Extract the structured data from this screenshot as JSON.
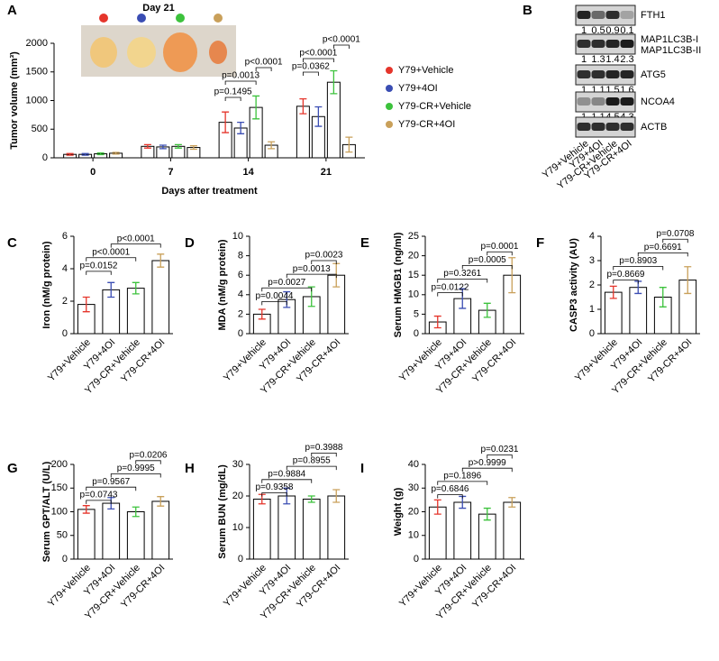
{
  "blot": {
    "panel": "B",
    "lanes": [
      "Y79+Vehicle",
      "Y79+4OI",
      "Y79-CR+Vehicle",
      "Y79-CR+4OI"
    ],
    "rows": [
      {
        "labels": [
          "FTH1"
        ],
        "values": [
          1,
          0.5,
          0.9,
          0.1
        ]
      },
      {
        "labels": [
          "MAP1LC3B-I",
          "MAP1LC3B-II"
        ],
        "values": [
          1,
          1.3,
          1.4,
          2.3
        ]
      },
      {
        "labels": [
          "ATG5"
        ],
        "values": [
          1,
          1.1,
          1.5,
          1.6
        ]
      },
      {
        "labels": [
          "NCOA4"
        ],
        "values": [
          1,
          1.1,
          4.5,
          4.3
        ]
      },
      {
        "labels": [
          "ACTB"
        ],
        "values": []
      }
    ]
  },
  "chart_data": [
    {
      "panel": "A",
      "type": "bar",
      "inset_label": "Day 21",
      "ylabel": "Tumor volume (mm³)",
      "xlabel": "Days after treatment",
      "categories": [
        "0",
        "7",
        "14",
        "21"
      ],
      "series": [
        {
          "name": "Y79+Vehicle",
          "color": "#e5352b",
          "values": [
            60,
            200,
            620,
            900
          ],
          "errors": [
            15,
            30,
            180,
            130
          ]
        },
        {
          "name": "Y79+4OI",
          "color": "#3a4db3",
          "values": [
            60,
            190,
            520,
            720
          ],
          "errors": [
            15,
            30,
            100,
            170
          ]
        },
        {
          "name": "Y79-CR+Vehicle",
          "color": "#3cc23c",
          "values": [
            70,
            200,
            880,
            1320
          ],
          "errors": [
            15,
            30,
            200,
            200
          ]
        },
        {
          "name": "Y79-CR+4OI",
          "color": "#c9a05a",
          "values": [
            80,
            180,
            220,
            230
          ],
          "errors": [
            15,
            30,
            60,
            130
          ]
        }
      ],
      "ylim": [
        0,
        2000
      ],
      "yticks": [
        0,
        500,
        1000,
        1500,
        2000
      ],
      "annotations": [
        "p=0.1495",
        "p=0.0013",
        "p<0.0001",
        "p=0.0362",
        "p<0.0001",
        "p<0.0001"
      ]
    },
    {
      "panel": "C",
      "type": "bar",
      "ylabel": "Iron (nM/g protein)",
      "categories": [
        "Y79+Vehicle",
        "Y79+4OI",
        "Y79-CR+Vehicle",
        "Y79-CR+4OI"
      ],
      "values": [
        1.8,
        2.7,
        2.8,
        4.5
      ],
      "errors": [
        0.45,
        0.45,
        0.35,
        0.4
      ],
      "colors": [
        "#e5352b",
        "#3a4db3",
        "#3cc23c",
        "#c9a05a"
      ],
      "ylim": [
        0,
        6
      ],
      "yticks": [
        0,
        2,
        4,
        6
      ],
      "annotations": [
        "p=0.0152",
        "p<0.0001",
        "p<0.0001"
      ]
    },
    {
      "panel": "D",
      "type": "bar",
      "ylabel": "MDA (nM/g protein)",
      "categories": [
        "Y79+Vehicle",
        "Y79+4OI",
        "Y79-CR+Vehicle",
        "Y79-CR+4OI"
      ],
      "values": [
        2.0,
        3.5,
        3.8,
        6.0
      ],
      "errors": [
        0.5,
        0.8,
        1.0,
        1.2
      ],
      "colors": [
        "#e5352b",
        "#3a4db3",
        "#3cc23c",
        "#c9a05a"
      ],
      "ylim": [
        0,
        10
      ],
      "yticks": [
        0,
        2,
        4,
        6,
        8,
        10
      ],
      "annotations": [
        "p=0.0044",
        "p=0.0027",
        "p=0.0013",
        "p=0.0023"
      ]
    },
    {
      "panel": "E",
      "type": "bar",
      "ylabel": "Serum HMGB1 (ng/ml)",
      "categories": [
        "Y79+Vehicle",
        "Y79+4OI",
        "Y79-CR+Vehicle",
        "Y79-CR+4OI"
      ],
      "values": [
        3,
        9,
        6,
        15
      ],
      "errors": [
        1.5,
        2.5,
        1.8,
        4.5
      ],
      "colors": [
        "#e5352b",
        "#3a4db3",
        "#3cc23c",
        "#c9a05a"
      ],
      "ylim": [
        0,
        25
      ],
      "yticks": [
        0,
        5,
        10,
        15,
        20,
        25
      ],
      "annotations": [
        "p=0.0122",
        "p=0.3261",
        "p=0.0005",
        "p=0.0001"
      ]
    },
    {
      "panel": "F",
      "type": "bar",
      "ylabel": "CASP3  activity (AU)",
      "categories": [
        "Y79+Vehicle",
        "Y79+4OI",
        "Y79-CR+Vehicle",
        "Y79-CR+4OI"
      ],
      "values": [
        1.7,
        1.9,
        1.5,
        2.2
      ],
      "errors": [
        0.25,
        0.25,
        0.4,
        0.55
      ],
      "colors": [
        "#e5352b",
        "#3a4db3",
        "#3cc23c",
        "#c9a05a"
      ],
      "ylim": [
        0,
        4
      ],
      "yticks": [
        0,
        1,
        2,
        3,
        4
      ],
      "annotations": [
        "p=0.8669",
        "p=0.8903",
        "p=0.6691",
        "p=0.0708"
      ]
    },
    {
      "panel": "G",
      "type": "bar",
      "ylabel": "Serum GPT/ALT (U/L)",
      "categories": [
        "Y79+Vehicle",
        "Y79+4OI",
        "Y79-CR+Vehicle",
        "Y79-CR+4OI"
      ],
      "values": [
        105,
        118,
        100,
        122
      ],
      "errors": [
        8,
        12,
        10,
        10
      ],
      "colors": [
        "#e5352b",
        "#3a4db3",
        "#3cc23c",
        "#c9a05a"
      ],
      "ylim": [
        0,
        200
      ],
      "yticks": [
        0,
        50,
        100,
        150,
        200
      ],
      "annotations": [
        "p=0.0743",
        "p=0.9567",
        "p=0.9995",
        "p=0.0206"
      ]
    },
    {
      "panel": "H",
      "type": "bar",
      "ylabel": "Serum BUN (mg/dL)",
      "categories": [
        "Y79+Vehicle",
        "Y79+4OI",
        "Y79-CR+Vehicle",
        "Y79-CR+4OI"
      ],
      "values": [
        19,
        20,
        19,
        20
      ],
      "errors": [
        1.5,
        2.5,
        1,
        2
      ],
      "colors": [
        "#e5352b",
        "#3a4db3",
        "#3cc23c",
        "#c9a05a"
      ],
      "ylim": [
        0,
        30
      ],
      "yticks": [
        0,
        10,
        20,
        30
      ],
      "annotations": [
        "p=0.9358",
        "p=0.9884",
        "p=0.8955",
        "p=0.3988"
      ]
    },
    {
      "panel": "I",
      "type": "bar",
      "ylabel": "Weight (g)",
      "categories": [
        "Y79+Vehicle",
        "Y79+4OI",
        "Y79-CR+Vehicle",
        "Y79-CR+4OI"
      ],
      "values": [
        22,
        24,
        19,
        24
      ],
      "errors": [
        3,
        2.5,
        2.5,
        2
      ],
      "colors": [
        "#e5352b",
        "#3a4db3",
        "#3cc23c",
        "#c9a05a"
      ],
      "ylim": [
        0,
        40
      ],
      "yticks": [
        0,
        10,
        20,
        30,
        40
      ],
      "annotations": [
        "p=0.6846",
        "p=0.1896",
        "p>0.9999",
        "p=0.0231"
      ]
    }
  ]
}
